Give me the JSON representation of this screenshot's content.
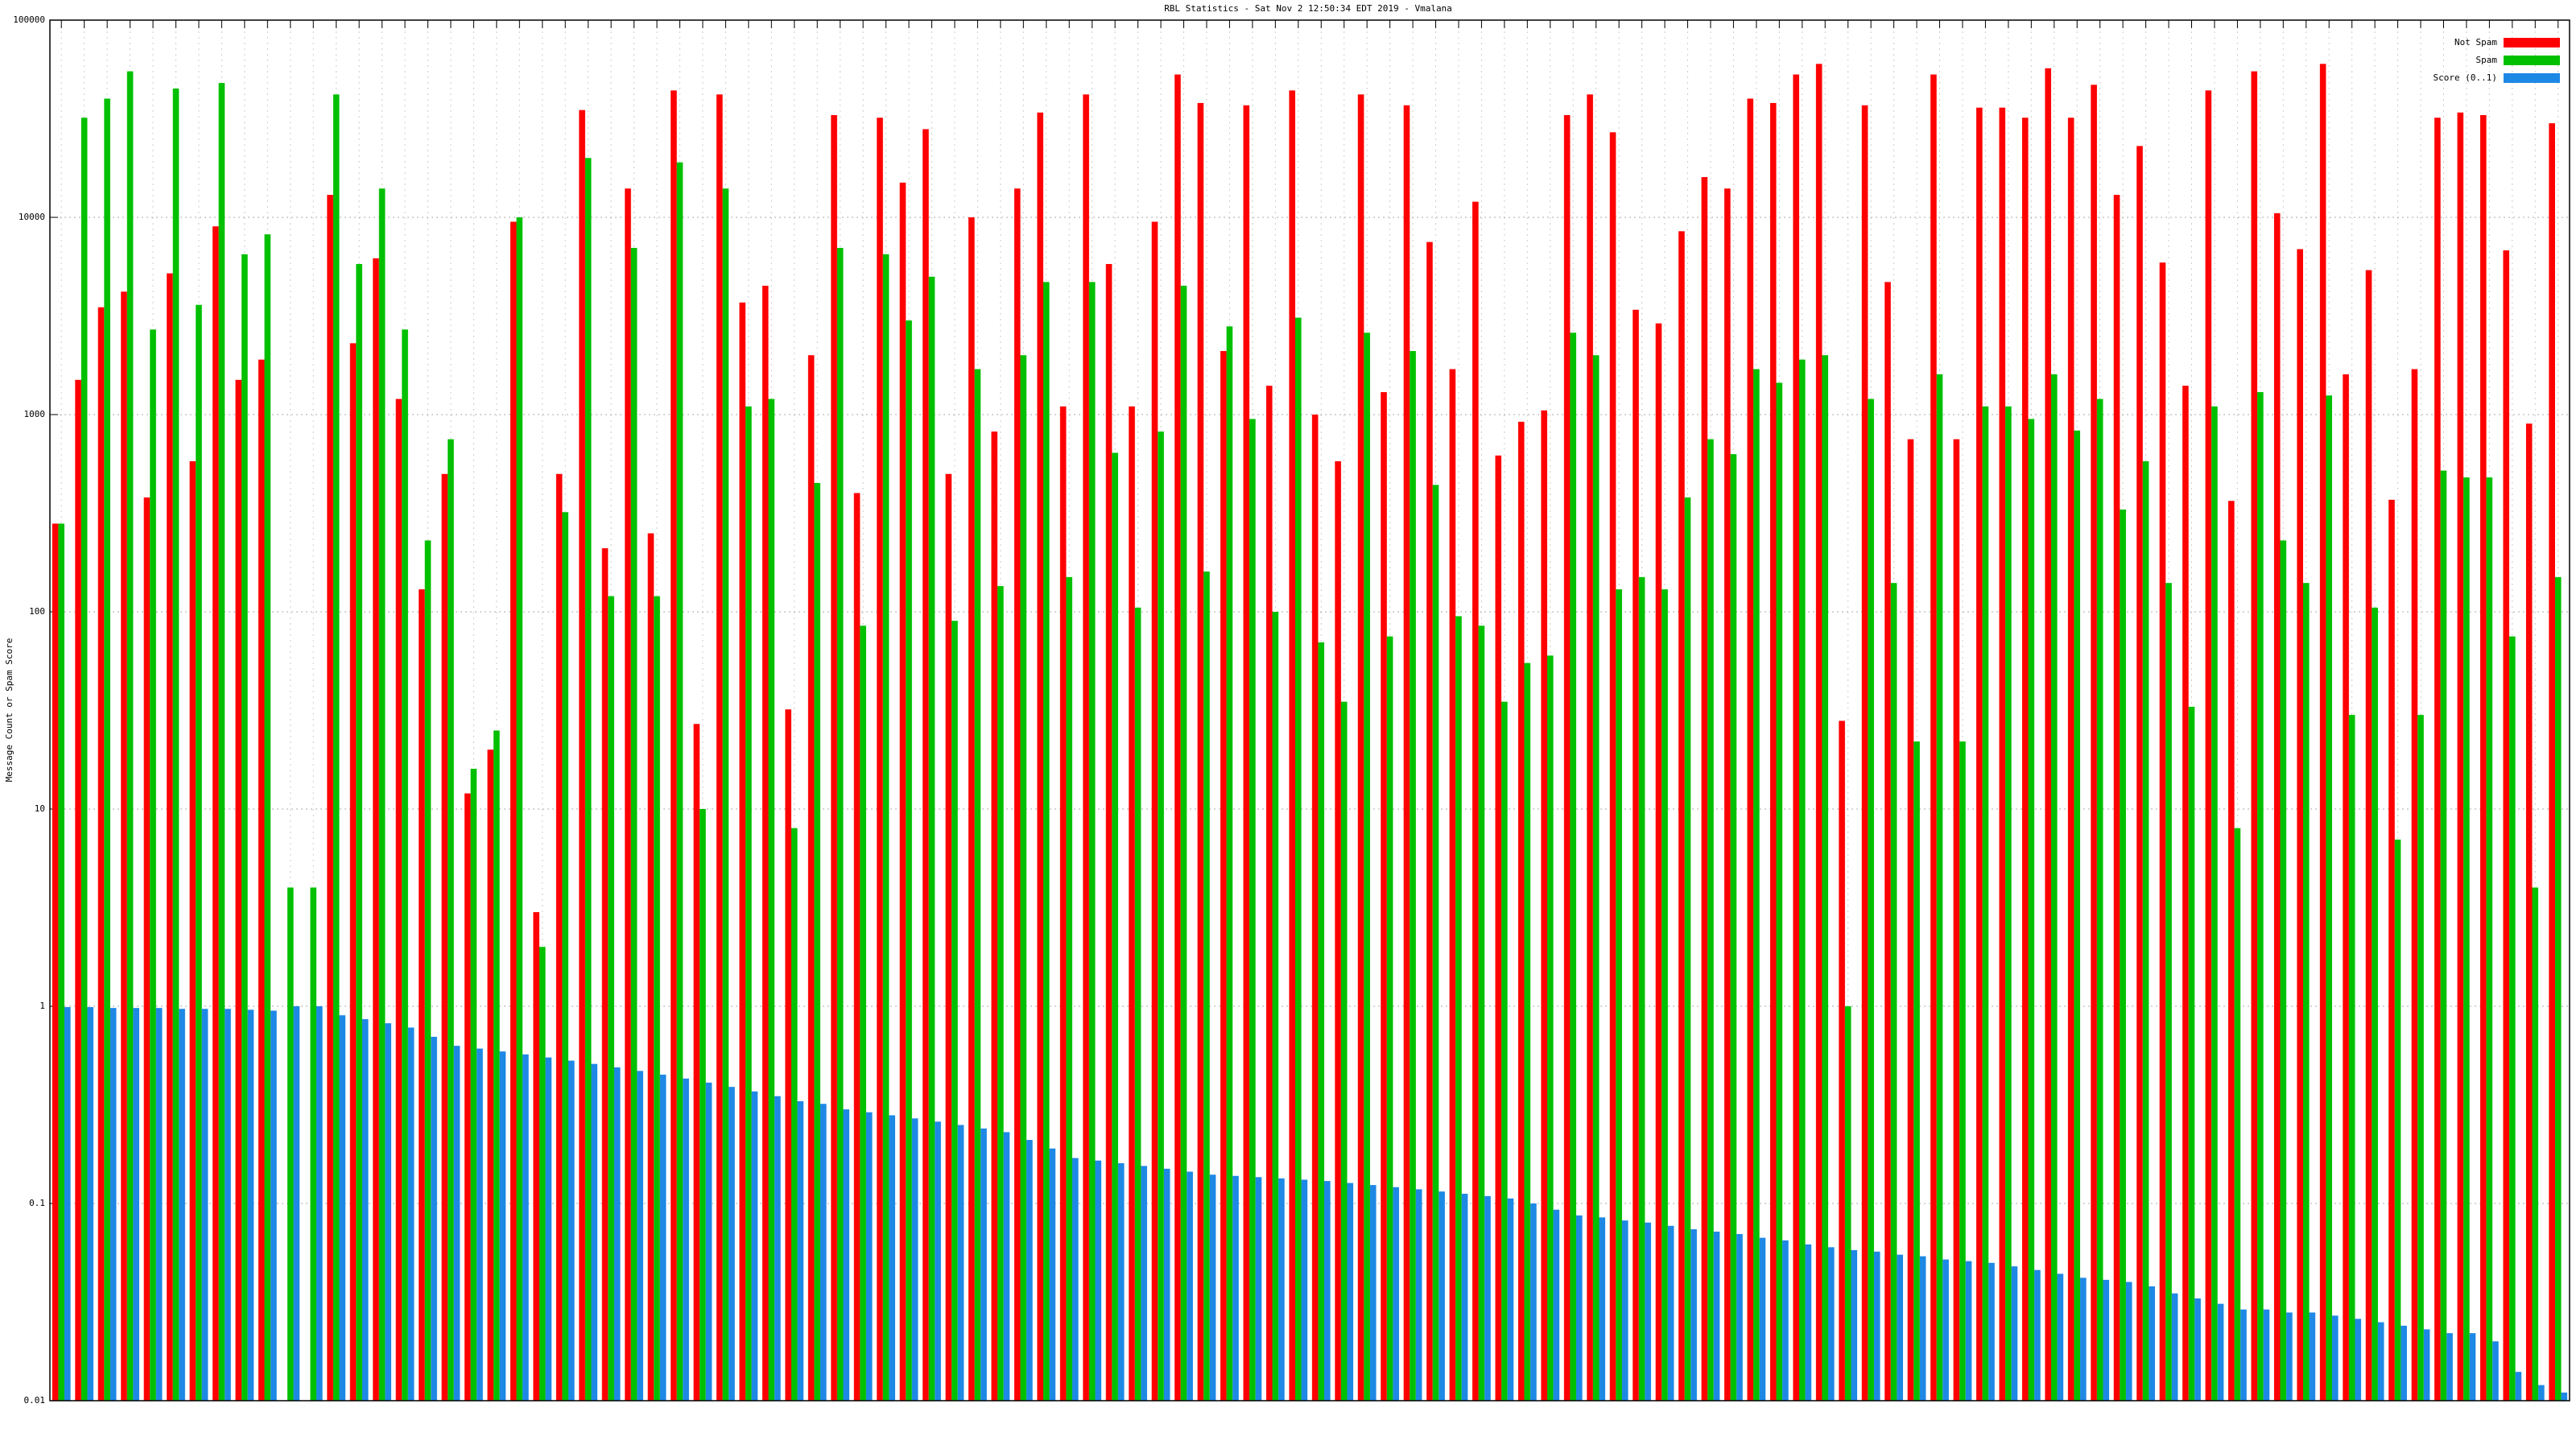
{
  "chart_data": {
    "type": "bar",
    "title": "RBL Statistics - Sat Nov 2 12:50:34 EDT 2019 - Vmalana",
    "y_label": "Message Count or Spam Score",
    "log_scale": true,
    "grid": true,
    "legend": "upper right",
    "ylim": [
      0.01,
      100000
    ],
    "yticks": [
      0.01,
      0.1,
      1,
      10,
      100,
      1000,
      10000,
      100000
    ],
    "categories": [
      null,
      null,
      null,
      null,
      null,
      null,
      null,
      null,
      null,
      null,
      null,
      null,
      null,
      null,
      null,
      null,
      null,
      null,
      null,
      null,
      null,
      null,
      null,
      null,
      null,
      null,
      null,
      null,
      null,
      null,
      null,
      null,
      null,
      null,
      null,
      null,
      null,
      null,
      null,
      null,
      null,
      null,
      null,
      null,
      null,
      null,
      null,
      null,
      null,
      null,
      null,
      null,
      null,
      null,
      null,
      null,
      null,
      null,
      null,
      null,
      null,
      null,
      null,
      null,
      null,
      null,
      null,
      null,
      null,
      null,
      null,
      null,
      null,
      null,
      null,
      null,
      null,
      null,
      null,
      null,
      null,
      null,
      null,
      null,
      null,
      null,
      null,
      null,
      null,
      null,
      null,
      null,
      null,
      null,
      null,
      null,
      null,
      null,
      null,
      null,
      null,
      null,
      null,
      null,
      null,
      null,
      null,
      null,
      null,
      null
    ],
    "series": [
      {
        "name": "Not Spam",
        "color": "#ff0000",
        "values": [
          280,
          1500,
          3500,
          4200,
          380,
          5200,
          580,
          9000,
          1500,
          1900,
          null,
          null,
          13000,
          2300,
          6200,
          1200,
          130,
          500,
          12,
          20,
          9500,
          3,
          500,
          35000,
          210,
          14000,
          250,
          44000,
          27,
          42000,
          3700,
          4500,
          32,
          2000,
          33000,
          400,
          32000,
          15000,
          28000,
          500,
          10000,
          820,
          14000,
          34000,
          1100,
          42000,
          5800,
          1100,
          9500,
          53000,
          38000,
          2100,
          37000,
          1400,
          44000,
          1000,
          580,
          42000,
          1300,
          37000,
          7500,
          1700,
          12000,
          620,
          920,
          1050,
          33000,
          42000,
          27000,
          3400,
          2900,
          8500,
          16000,
          14000,
          40000,
          38000,
          53000,
          60000,
          28,
          37000,
          4700,
          750,
          53000,
          750,
          36000,
          36000,
          32000,
          57000,
          32000,
          47000,
          13000,
          23000,
          5900,
          1400,
          44000,
          365,
          55000,
          10500,
          6900,
          60000,
          1600,
          5400,
          370,
          1700,
          32000,
          34000,
          33000,
          6800,
          900,
          30000
        ]
      },
      {
        "name": "Spam",
        "color": "#00c000",
        "values": [
          280,
          32000,
          40000,
          55000,
          2700,
          45000,
          3600,
          48000,
          6500,
          8200,
          4,
          4,
          42000,
          5800,
          14000,
          2700,
          230,
          750,
          16,
          25,
          10000,
          2,
          320,
          20000,
          120,
          7000,
          120,
          19000,
          10,
          14000,
          1100,
          1200,
          8,
          450,
          7000,
          85,
          6500,
          3000,
          5000,
          90,
          1700,
          135,
          2000,
          4700,
          150,
          4700,
          640,
          105,
          820,
          4500,
          160,
          2800,
          950,
          100,
          3100,
          70,
          35,
          2600,
          75,
          2100,
          440,
          95,
          85,
          35,
          55,
          60,
          2600,
          2000,
          130,
          150,
          130,
          380,
          750,
          630,
          1700,
          1450,
          1900,
          2000,
          1,
          1200,
          140,
          22,
          1600,
          22,
          1100,
          1100,
          950,
          1600,
          830,
          1200,
          330,
          580,
          140,
          33,
          1100,
          8,
          1300,
          230,
          140,
          1250,
          30,
          105,
          7,
          30,
          520,
          480,
          480,
          75,
          4,
          150
        ]
      },
      {
        "name": "Score (0..1)",
        "color": "#1e88e5",
        "values": [
          0.99,
          0.99,
          0.98,
          0.98,
          0.98,
          0.97,
          0.97,
          0.97,
          0.96,
          0.95,
          1.0,
          1.0,
          0.9,
          0.86,
          0.82,
          0.78,
          0.7,
          0.63,
          0.61,
          0.59,
          0.57,
          0.55,
          0.53,
          0.51,
          0.49,
          0.47,
          0.45,
          0.43,
          0.41,
          0.39,
          0.37,
          0.35,
          0.33,
          0.32,
          0.3,
          0.29,
          0.28,
          0.27,
          0.26,
          0.25,
          0.24,
          0.23,
          0.21,
          0.19,
          0.17,
          0.165,
          0.16,
          0.155,
          0.15,
          0.145,
          0.14,
          0.138,
          0.136,
          0.134,
          0.132,
          0.13,
          0.127,
          0.124,
          0.121,
          0.118,
          0.115,
          0.112,
          0.109,
          0.106,
          0.1,
          0.093,
          0.087,
          0.085,
          0.082,
          0.08,
          0.077,
          0.074,
          0.072,
          0.07,
          0.067,
          0.065,
          0.062,
          0.06,
          0.058,
          0.057,
          0.055,
          0.054,
          0.052,
          0.051,
          0.05,
          0.048,
          0.046,
          0.044,
          0.042,
          0.041,
          0.04,
          0.038,
          0.035,
          0.033,
          0.031,
          0.029,
          0.029,
          0.028,
          0.028,
          0.027,
          0.026,
          0.025,
          0.024,
          0.023,
          0.022,
          0.022,
          0.02,
          0.014,
          0.012,
          0.011
        ]
      }
    ]
  }
}
